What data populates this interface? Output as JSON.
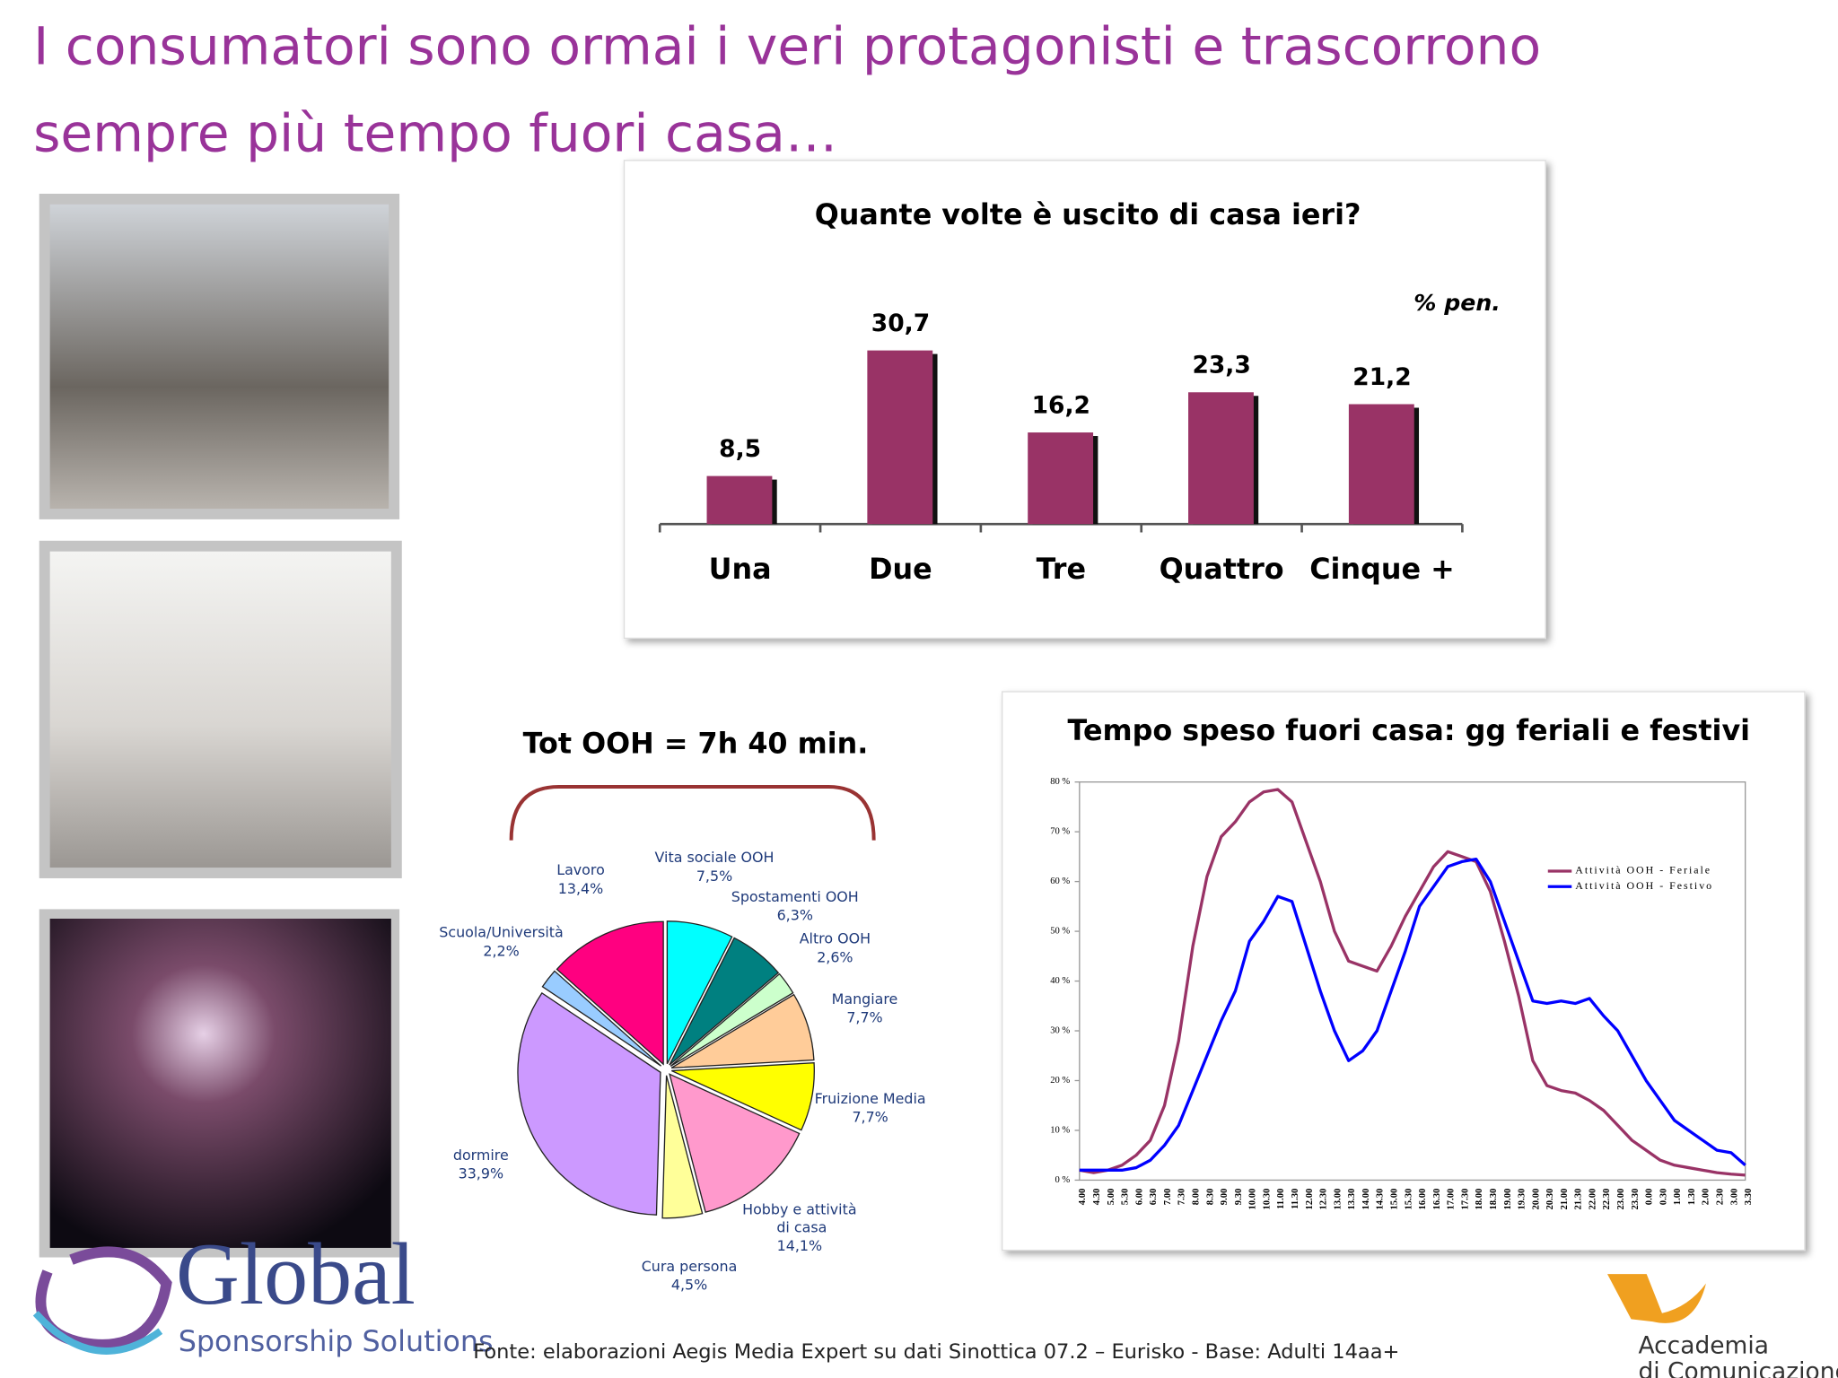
{
  "title_lines": [
    "I consumatori sono ormai i veri protagonisti e trascorrono",
    "sempre più tempo fuori casa…"
  ],
  "source": "Fonte: elaborazioni Aegis Media Expert su dati Sinottica 07.2 – Eurisko - Base:  Adulti 14aa+",
  "logo_left": {
    "name": "Global",
    "tagline": "Sponsorship Solutions"
  },
  "logo_right": [
    "Accademia",
    "di Comunicazione"
  ],
  "chart_data": [
    {
      "type": "bar",
      "title": "Quante volte è uscito di casa ieri?",
      "unit": "% pen.",
      "categories": [
        "Una",
        "Due",
        "Tre",
        "Quattro",
        "Cinque +"
      ],
      "values": [
        8.5,
        30.7,
        16.2,
        23.3,
        21.2
      ],
      "value_labels": [
        "8,5",
        "30,7",
        "16,2",
        "23,3",
        "21,2"
      ],
      "color": "#993366"
    },
    {
      "type": "pie",
      "title": "Tot OOH = 7h  40 min.",
      "categories": [
        "Vita sociale OOH",
        "Spostamenti OOH",
        "Altro OOH",
        "Mangiare",
        "Fruizione Media",
        "Hobby e attività di casa",
        "Cura persona",
        "dormire",
        "Scuola/Università",
        "Lavoro"
      ],
      "values": [
        7.5,
        6.3,
        2.6,
        7.7,
        7.7,
        14.1,
        4.5,
        33.9,
        2.2,
        13.4
      ],
      "value_labels": [
        "7,5%",
        "6,3%",
        "2,6%",
        "7,7%",
        "7,7%",
        "14,1%",
        "4,5%",
        "33,9%",
        "2,2%",
        "13,4%"
      ],
      "colors": [
        "#00ffff",
        "#008080",
        "#ccffcc",
        "#ffcc99",
        "#ffff00",
        "#ff99cc",
        "#ffff99",
        "#cc99ff",
        "#99ccff",
        "#ff0080"
      ]
    },
    {
      "type": "line",
      "title": "Tempo speso fuori casa: gg feriali e festivi",
      "x": [
        "4.00",
        "4.30",
        "5.00",
        "5.30",
        "6.00",
        "6.30",
        "7.00",
        "7.30",
        "8.00",
        "8.30",
        "9.00",
        "9.30",
        "10.00",
        "10.30",
        "11.00",
        "11.30",
        "12.00",
        "12.30",
        "13.00",
        "13.30",
        "14.00",
        "14.30",
        "15.00",
        "15.30",
        "16.00",
        "16.30",
        "17.00",
        "17.30",
        "18.00",
        "18.30",
        "19.00",
        "19.30",
        "20.00",
        "20.30",
        "21.00",
        "21.30",
        "22.00",
        "22.30",
        "23.00",
        "23.30",
        "0.00",
        "0.30",
        "1.00",
        "1.30",
        "2.00",
        "2.30",
        "3.00",
        "3.30"
      ],
      "series": [
        {
          "name": "Attività OOH - Feriale",
          "color": "#993366",
          "values": [
            2,
            1.5,
            2,
            3,
            5,
            8,
            15,
            28,
            47,
            61,
            69,
            72,
            76,
            78,
            78.5,
            76,
            68,
            60,
            50,
            44,
            43,
            42,
            47,
            53,
            58,
            63,
            66,
            65,
            64,
            58,
            48,
            37,
            24,
            19,
            18,
            17.5,
            16,
            14,
            11,
            8,
            6,
            4,
            3,
            2.5,
            2,
            1.5,
            1.2,
            1
          ]
        },
        {
          "name": "Attività OOH - Festivo",
          "color": "#0000ff",
          "values": [
            2,
            2,
            2,
            2,
            2.5,
            4,
            7,
            11,
            18,
            25,
            32,
            38,
            48,
            52,
            57,
            56,
            47,
            38,
            30,
            24,
            26,
            30,
            38,
            46,
            55,
            59,
            63,
            64,
            64.5,
            60,
            52,
            44,
            36,
            35.5,
            36,
            35.5,
            36.5,
            33,
            30,
            25,
            20,
            16,
            12,
            10,
            8,
            6,
            5.5,
            3
          ]
        }
      ],
      "ylim": [
        0,
        80
      ],
      "yticks": [
        {
          "value": 0,
          "label": "0 %"
        },
        {
          "value": 10,
          "label": "10 %"
        },
        {
          "value": 20,
          "label": "20 %"
        },
        {
          "value": 30,
          "label": "30 %"
        },
        {
          "value": 40,
          "label": "40 %"
        },
        {
          "value": 50,
          "label": "50 %"
        },
        {
          "value": 60,
          "label": "60 %"
        },
        {
          "value": 70,
          "label": "70 %"
        },
        {
          "value": 80,
          "label": "80 %"
        }
      ],
      "legend": "right"
    }
  ]
}
